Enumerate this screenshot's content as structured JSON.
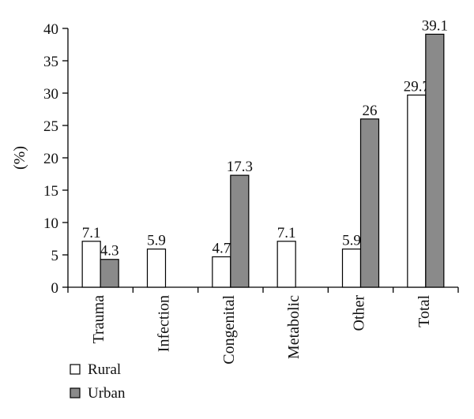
{
  "chart_data": {
    "type": "bar",
    "title": "",
    "xlabel": "",
    "ylabel": "(%)",
    "ylim": [
      0,
      40
    ],
    "yticks": [
      0,
      5,
      10,
      15,
      20,
      25,
      30,
      35,
      40
    ],
    "grid": false,
    "legend_position": "bottom-left",
    "categories": [
      "Trauma",
      "Infection",
      "Congenital",
      "Metabolic",
      "Other",
      "Total"
    ],
    "series": [
      {
        "name": "Rural",
        "color": "#ffffff",
        "values": [
          7.1,
          5.9,
          4.7,
          7.1,
          5.9,
          29.7
        ],
        "labels": [
          "7.1",
          "5.9",
          "4.7",
          "7.1",
          "5.9",
          "29.7"
        ]
      },
      {
        "name": "Urban",
        "color": "#8a8a8a",
        "values": [
          4.3,
          null,
          17.3,
          null,
          26,
          39.1
        ],
        "labels": [
          "4.3",
          null,
          "17.3",
          null,
          "26",
          "39.1"
        ]
      }
    ]
  }
}
